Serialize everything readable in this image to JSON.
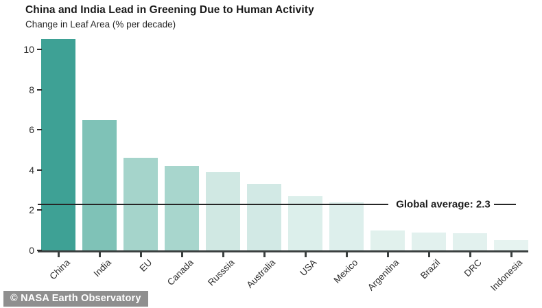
{
  "chart_data": {
    "type": "bar",
    "title": "China and India Lead in Greening Due to Human Activity",
    "subtitle": "Change in Leaf Area (% per decade)",
    "categories": [
      "China",
      "India",
      "EU",
      "Canada",
      "Russsia",
      "Australia",
      "USA",
      "Mexico",
      "Argentina",
      "Brazil",
      "DRC",
      "Indonesia"
    ],
    "values": [
      10.5,
      6.5,
      4.6,
      4.2,
      3.9,
      3.3,
      2.7,
      2.4,
      1.0,
      0.9,
      0.85,
      0.5
    ],
    "bar_colors": [
      "#3ea195",
      "#7fc2b7",
      "#a5d4cb",
      "#a8d6cd",
      "#d0e8e3",
      "#d2e9e5",
      "#dcefeb",
      "#ddefec",
      "#e1f1ed",
      "#e2f1ee",
      "#e2f1ee",
      "#e6f3f0"
    ],
    "xlabel": "",
    "ylabel": "Change in Leaf Area (% per decade)",
    "ylim": [
      0,
      10.7
    ],
    "yticks": [
      0,
      2,
      4,
      6,
      8,
      10
    ],
    "grid": false,
    "legend": "none",
    "annotation": {
      "label": "Global average: 2.3",
      "value": 2.3
    }
  },
  "attribution": {
    "label": "© NASA Earth Observatory"
  },
  "colors": {
    "background": "#ffffff",
    "axis": "#3b4040",
    "text": "#1a1a1a",
    "reference_line": "#262626",
    "badge_background": "#8f8f8f",
    "badge_text": "#ffffff"
  }
}
